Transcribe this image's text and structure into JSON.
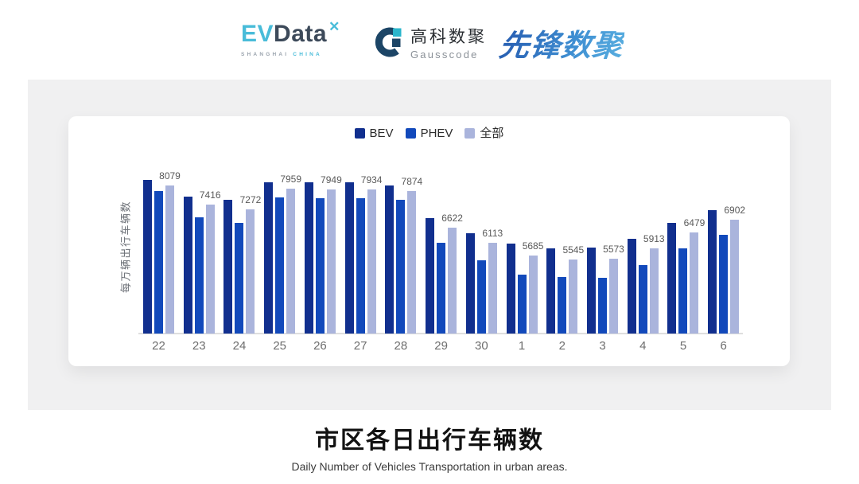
{
  "header": {
    "evdata_logo": {
      "part_ev": "EV",
      "part_data": "Data",
      "mark": "✕",
      "tagline_left": "SHANGHAI",
      "tagline_right": "CHINA"
    },
    "gausscode_logo": {
      "name_cn": "高科数聚",
      "name_en": "Gausscode"
    },
    "pioneer_logo": {
      "name_cn": "先锋数聚"
    }
  },
  "chart_data": {
    "type": "bar",
    "title": "市区各日出行车辆数",
    "subtitle": "Daily Number of Vehicles Transportation in urban areas.",
    "ylabel": "每万辆出行车辆数",
    "xlabel": "",
    "categories": [
      "22",
      "23",
      "24",
      "25",
      "26",
      "27",
      "28",
      "29",
      "30",
      "1",
      "2",
      "3",
      "4",
      "5",
      "6"
    ],
    "series": [
      {
        "name": "BEV",
        "color": "#112f8e",
        "values": [
          8270,
          7706,
          7589,
          8180,
          8180,
          8197,
          8071,
          6954,
          6453,
          6090,
          5927,
          5936,
          6246,
          6791,
          7227
        ]
      },
      {
        "name": "PHEV",
        "color": "#1249bb",
        "values": [
          7889,
          6998,
          6799,
          7679,
          7652,
          7652,
          7589,
          6109,
          5518,
          5028,
          4927,
          4910,
          5335,
          5927,
          6390
        ]
      },
      {
        "name": "全部",
        "color": "#aab4dc",
        "values": [
          8079,
          7416,
          7272,
          7959,
          7949,
          7934,
          7874,
          6622,
          6113,
          5685,
          5545,
          5573,
          5913,
          6479,
          6902
        ]
      }
    ],
    "data_labels": [
      8079,
      7416,
      7272,
      7959,
      7949,
      7934,
      7874,
      6622,
      6113,
      5685,
      5545,
      5573,
      5913,
      6479,
      6902
    ],
    "legend": [
      "BEV",
      "PHEV",
      "全部"
    ],
    "legend_position": "top",
    "grid": false,
    "ylim": [
      3000,
      8600
    ]
  },
  "colors": {
    "panel_bg": "#f0f0f1",
    "card_bg": "#ffffff",
    "axis_line": "#dedede",
    "evdata_blue": "#49bcd9",
    "evdata_dark": "#3d4a5a",
    "gausscode_navy": "#1c4566",
    "gausscode_cyan": "#2ab5cb",
    "pioneer_blue": "#2f77c8"
  }
}
